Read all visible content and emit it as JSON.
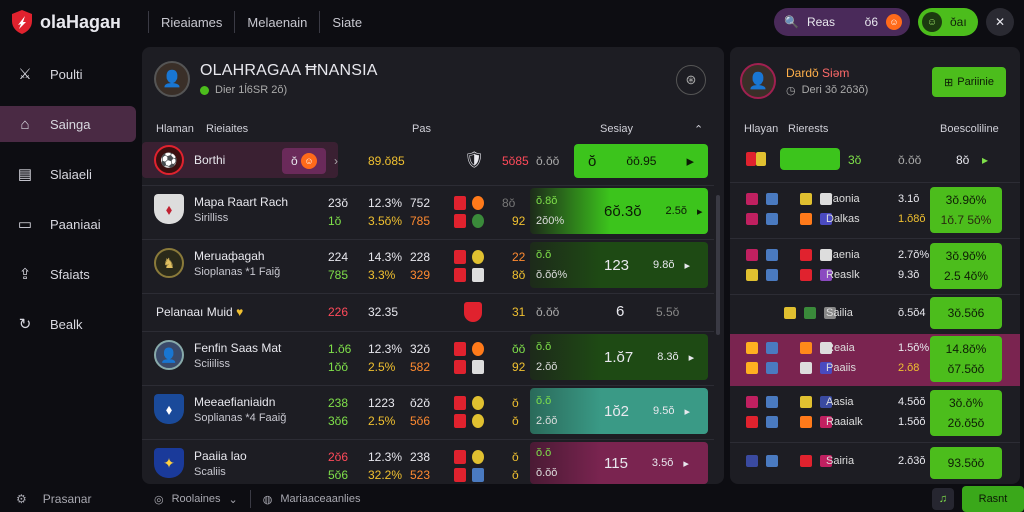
{
  "brand": {
    "name": "olaHagaн"
  },
  "nav": [
    "Rieaiames",
    "Melaenain",
    "Siate"
  ],
  "search": {
    "label": "Reas",
    "count": "ŏ6",
    "badge": "☺"
  },
  "user": {
    "label": "ŏaı"
  },
  "sidebar": {
    "items": [
      {
        "label": "Poulti",
        "icon": "swords-icon"
      },
      {
        "label": "Sainga",
        "icon": "tag-icon",
        "active": true
      },
      {
        "label": "Slaiaeli",
        "icon": "clipboard-icon"
      },
      {
        "label": "Paaniaai",
        "icon": "message-icon"
      },
      {
        "label": "Sfaiats",
        "icon": "share-icon"
      },
      {
        "label": "Bealk",
        "icon": "refresh-icon"
      }
    ],
    "footer": "Prasanar"
  },
  "main": {
    "title": "OLAHRAGAA ĦNANSIA",
    "subtitle": "Dier 1ĺ6SR 2ŏ)",
    "columns": {
      "a": "Hlaman",
      "b": "Rieiaites",
      "c": "Pas",
      "d": "Sesiay"
    },
    "rows": [
      {
        "name": "Borthi",
        "n1": "ŏ",
        "score": "8",
        "v1": "ŏ",
        "v2": "89.ŏ85",
        "v3": "5ŏ85",
        "v4": "ŏ.ŏŏ",
        "big": "ŏ",
        "odds": "ŏŏ.95"
      },
      {
        "name": "Mapa Raart Rach",
        "name2": "Sirilliss",
        "a1": "23ŏ",
        "a2": "1ŏ",
        "b1": "12.3%",
        "b2": "3.5ŏ%",
        "c1": "752",
        "c2": "785",
        "d1": "8ŏ",
        "d2": "92",
        "e1": "ŏ.8ŏ",
        "e2": "2ŏ0%",
        "big": "6ŏ.3ŏ",
        "odds": "2.5ŏ"
      },
      {
        "name": "Meruaфagah",
        "name2": "Sioplanas *1 Faiğ",
        "a1": "224",
        "a2": "785",
        "b1": "14.3%",
        "b2": "3.3%",
        "c1": "228",
        "c2": "329",
        "d1": "22",
        "d2": "8ŏ",
        "e1": "ŏ.ŏ",
        "e2": "ŏ.ŏŏ%",
        "big": "123",
        "odds": "9.8ŏ"
      },
      {
        "name": "Pelanaaı Muid",
        "a1": "226",
        "b1": "32.35",
        "d1": "31",
        "e1": "ŏ.ŏŏ",
        "big": "6",
        "odds": "5.5ŏ"
      },
      {
        "name": "Fenfin Saas Mat",
        "name2": "Sciiiliss",
        "a1": "1.ŏ6",
        "a2": "1ŏŏ",
        "b1": "12.3%",
        "b2": "2.5%",
        "c1": "32ŏ",
        "c2": "582",
        "d1": "ŏŏ",
        "d2": "92",
        "e1": "ŏ.ŏ",
        "e2": "2.ŏŏ",
        "big": "1.ŏ7",
        "odds": "8.3ŏ"
      },
      {
        "name": "Meeaefianiaidn",
        "name2": "Soplianas *4 Faaiğ",
        "a1": "238",
        "a2": "3ŏ6",
        "b1": "1223",
        "b2": "2.5%",
        "c1": "ŏ2ŏ",
        "c2": "5ŏ6",
        "d1": "ŏ",
        "d2": "ŏ",
        "e1": "ŏ.ŏ",
        "e2": "2.ŏŏ",
        "big": "1ŏ2",
        "odds": "9.5ŏ"
      },
      {
        "name": "Paaiia lao",
        "name2": "Scaliis",
        "a1": "2ŏ6",
        "a2": "5ŏ6",
        "b1": "12.3%",
        "b2": "32.2%",
        "c1": "238",
        "c2": "523",
        "d1": "ŏ",
        "d2": "ŏ",
        "e1": "ŏ.ŏ",
        "e2": "ŏ.ŏŏ",
        "big": "115",
        "odds": "3.5ŏ"
      }
    ]
  },
  "right": {
    "title_a": "Dardŏ",
    "title_b": "Siəm",
    "subtitle": "Deri 3ŏ 2ŏ3ŏ)",
    "button": "Pariinie",
    "columns": {
      "a": "Hlayan",
      "b": "Rierests",
      "c": "Boescoliline"
    },
    "rows": [
      {
        "t1": "Faonia",
        "t2": "Dalkas",
        "v1": "3.1ŏ",
        "v2": "1.ŏ8ŏ",
        "o1": "3ŏ.9ŏ%",
        "o2": "1ŏ.7 5ŏ%"
      },
      {
        "t1": "Faenia",
        "t2": "Reaslk",
        "v1": "2.7ŏ%",
        "v2": "9.3ŏ",
        "o1": "3ŏ.9ŏ%",
        "o2": "2.5 4ŏ%"
      },
      {
        "t1": "Sailia",
        "v1": "ŏ.5ŏ4",
        "o1": "3ŏ.5ŏ6"
      },
      {
        "t1": "Reaia",
        "t2": "Paaiis",
        "v1": "1.5ŏ%",
        "v2": "2.ŏ8",
        "o1": "14.8ŏ%",
        "o2": "ŏ7.5ŏŏ"
      },
      {
        "t1": "Aasia",
        "t2": "Raaialk",
        "v1": "4.5ŏŏ",
        "v2": "1.5ŏŏ",
        "o1": "3ŏ.ŏ%",
        "o2": "2ŏ.ŏ5ŏ"
      },
      {
        "t1": "Sairia",
        "v1": "2.ŏ3ŏ",
        "o1": "93.5ŏŏ"
      }
    ],
    "first": {
      "badge": "3ŏ",
      "score": "8ŏ",
      "val": "ŏ.ŏŏ"
    }
  },
  "bottom": {
    "left": "Roolaines",
    "mid": "Mariaaceaanlies",
    "button": "Rasnt"
  },
  "colors": {
    "accent_green": "#4cbd1c",
    "accent_purple": "#4a2a5a",
    "accent_teal": "#3a9a86",
    "accent_magenta": "#7a2450"
  }
}
